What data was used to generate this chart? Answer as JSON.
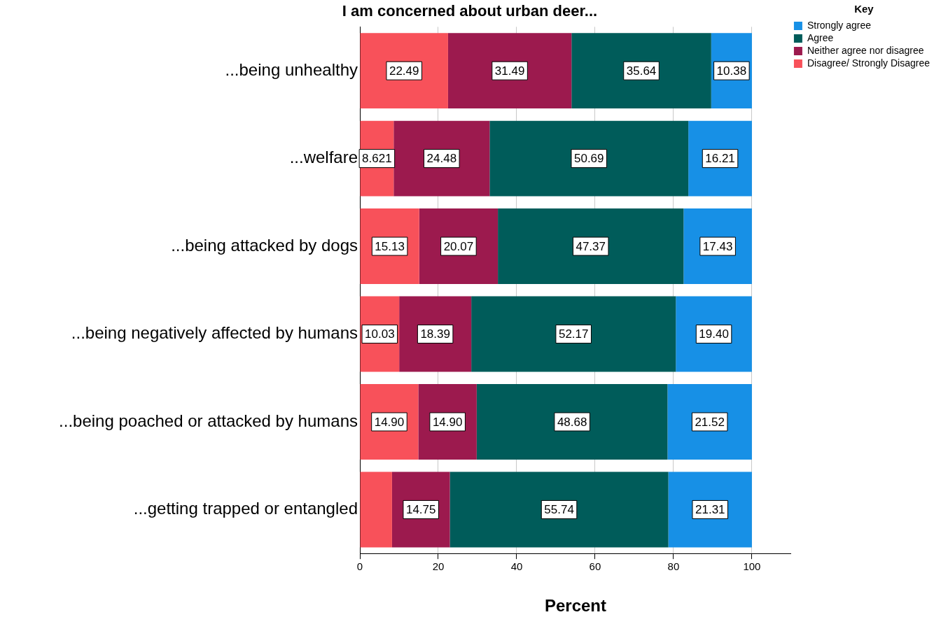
{
  "chart_data": {
    "type": "bar",
    "orientation": "horizontal",
    "stacked": true,
    "title": "I am concerned about urban deer...",
    "xlabel": "Percent",
    "legend_title": "Key",
    "legend": "top right",
    "grid": "x",
    "xlim": [
      0,
      110
    ],
    "xticks": [
      0,
      20,
      40,
      60,
      80,
      100
    ],
    "categories": [
      "...being unhealthy",
      "...welfare",
      "...being attacked by dogs",
      "...being negatively affected by humans",
      "...being poached or attacked by humans",
      "...getting trapped or entangled"
    ],
    "series": [
      {
        "name": "Disagree/ Strongly Disagree",
        "color": "#f8515a",
        "values": [
          22.49,
          8.621,
          15.13,
          10.03,
          14.9,
          8.2
        ],
        "value_labels": [
          "22.49",
          "8.621",
          "15.13",
          "10.03",
          "14.90",
          null
        ]
      },
      {
        "name": "Neither agree nor disagree",
        "color": "#9c1a4e",
        "values": [
          31.49,
          24.48,
          20.07,
          18.39,
          14.9,
          14.75
        ],
        "value_labels": [
          "31.49",
          "24.48",
          "20.07",
          "18.39",
          "14.90",
          "14.75"
        ]
      },
      {
        "name": "Agree",
        "color": "#005c5a",
        "values": [
          35.64,
          50.69,
          47.37,
          52.17,
          48.68,
          55.74
        ],
        "value_labels": [
          "35.64",
          "50.69",
          "47.37",
          "52.17",
          "48.68",
          "55.74"
        ]
      },
      {
        "name": "Strongly agree",
        "color": "#1790e6",
        "values": [
          10.38,
          16.21,
          17.43,
          19.4,
          21.52,
          21.31
        ],
        "value_labels": [
          "10.38",
          "16.21",
          "17.43",
          "19.40",
          "21.52",
          "21.31"
        ]
      }
    ]
  }
}
